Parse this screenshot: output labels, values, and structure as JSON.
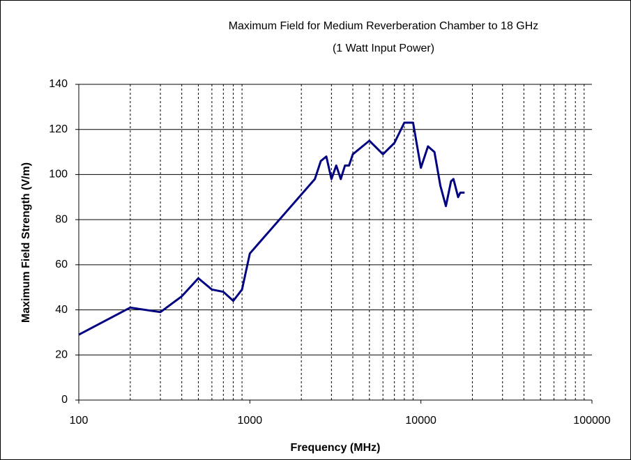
{
  "chart_data": {
    "type": "line",
    "title": "Maximum Field for Medium Reverberation Chamber to 18 GHz",
    "subtitle": "(1 Watt Input Power)",
    "x_label": "Frequency (MHz)",
    "y_label": "Maximum Field Strength (V/m)",
    "x": [
      100,
      200,
      300,
      400,
      500,
      600,
      700,
      800,
      900,
      1000,
      2400,
      2600,
      2800,
      3000,
      3200,
      3400,
      3600,
      3800,
      4000,
      5000,
      6000,
      7000,
      8000,
      9000,
      10000,
      11000,
      12000,
      13000,
      14000,
      15000,
      15500,
      16000,
      16500,
      17000,
      18000
    ],
    "series": [
      {
        "name": "Maximum Field",
        "color": "#000080",
        "values": [
          29,
          41,
          39,
          46,
          54,
          49,
          48,
          44,
          49,
          65,
          98,
          106,
          108,
          98,
          104,
          98,
          104,
          104,
          109,
          115,
          109,
          114,
          123,
          123,
          103,
          112.5,
          110,
          95,
          86,
          97,
          98,
          94,
          90,
          92,
          92
        ]
      }
    ],
    "xlim": [
      100,
      100000
    ],
    "x_log": true,
    "xticks": [
      100,
      1000,
      10000,
      100000
    ],
    "x_minor_grid": [
      200,
      300,
      400,
      500,
      600,
      700,
      800,
      900,
      2000,
      3000,
      4000,
      5000,
      6000,
      7000,
      8000,
      9000,
      20000,
      30000,
      40000,
      50000,
      60000,
      70000,
      80000,
      90000
    ],
    "ylim": [
      0,
      140
    ],
    "yticks": [
      0,
      20,
      40,
      60,
      80,
      100,
      120,
      140
    ],
    "grid": true
  }
}
